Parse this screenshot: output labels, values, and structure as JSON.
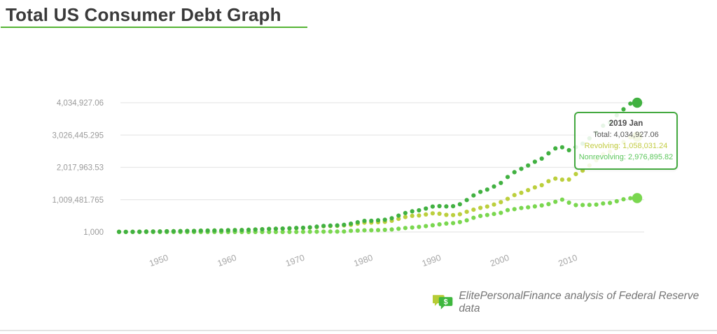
{
  "header": {
    "title": "Total US Consumer Debt Graph"
  },
  "colors": {
    "title_text": "#3a3a3a",
    "title_underline": "#55b435",
    "total_series": "#41b141",
    "nonrevolving_series": "#bccf3d",
    "revolving_series": "#7ad74f",
    "tooltip_border": "#44a940",
    "gridline": "#e7e7e7",
    "axis_label": "#a6a6a6"
  },
  "tooltip": {
    "title": "2019 Jan",
    "total_line": "Total: 4,034,927.06",
    "revolving_line": "Revolving: 1,058,031.24",
    "nonrevolving_line": "Nonrevolving: 2,976,895.82"
  },
  "footer": {
    "icon": "dollar-chat-bubbles-icon",
    "attribution": "ElitePersonalFinance analysis of Federal Reserve data"
  },
  "chart_data": {
    "type": "scatter",
    "title": "Total US Consumer Debt Graph",
    "xlabel": "",
    "ylabel": "",
    "grid": true,
    "legend_position": "none",
    "ylim": [
      1000,
      4034927.06
    ],
    "y_ticks": [
      {
        "label": "4,034,927.06",
        "value": 4034927.06
      },
      {
        "label": "3,026,445.295",
        "value": 3026445.295
      },
      {
        "label": "2,017,963.53",
        "value": 2017963.53
      },
      {
        "label": "1,009,481.765",
        "value": 1009481.765
      },
      {
        "label": "1,000",
        "value": 1000
      }
    ],
    "x_ticks": [
      1950,
      1960,
      1970,
      1980,
      1990,
      2000,
      2010
    ],
    "x": [
      1943,
      1944,
      1945,
      1946,
      1947,
      1948,
      1949,
      1950,
      1951,
      1952,
      1953,
      1954,
      1955,
      1956,
      1957,
      1958,
      1959,
      1960,
      1961,
      1962,
      1963,
      1964,
      1965,
      1966,
      1967,
      1968,
      1969,
      1970,
      1971,
      1972,
      1973,
      1974,
      1975,
      1976,
      1977,
      1978,
      1979,
      1980,
      1981,
      1982,
      1983,
      1984,
      1985,
      1986,
      1987,
      1988,
      1989,
      1990,
      1991,
      1992,
      1993,
      1994,
      1995,
      1996,
      1997,
      1998,
      1999,
      2000,
      2001,
      2002,
      2003,
      2004,
      2005,
      2006,
      2007,
      2008,
      2009,
      2010,
      2011,
      2012,
      2013,
      2014,
      2015,
      2016,
      2017,
      2018,
      2019
    ],
    "series": [
      {
        "name": "Nonrevolving",
        "color": "#bccf3d",
        "final_label": "2,976,895.82",
        "values": [
          6500,
          6300,
          7150,
          9780,
          13100,
          15740,
          18820,
          22930,
          24520,
          29270,
          33420,
          34620,
          41620,
          44920,
          47420,
          48020,
          55420,
          59920,
          62120,
          68120,
          76520,
          85720,
          95820,
          101720,
          106720,
          115300,
          123600,
          126580,
          138680,
          156790,
          178750,
          185940,
          190460,
          209170,
          223160,
          259430,
          293910,
          294470,
          305720,
          317150,
          351340,
          410950,
          467620,
          505030,
          515340,
          547340,
          583380,
          569590,
          534260,
          527670,
          555740,
          631730,
          697560,
          754020,
          793720,
          858500,
          932910,
          1034680,
          1152650,
          1223340,
          1307060,
          1392650,
          1461280,
          1586470,
          1667560,
          1633460,
          1638240,
          1808530,
          1914670,
          2077410,
          2241440,
          2427550,
          2509800,
          2684490,
          2807250,
          2954170,
          2976895.82
        ]
      },
      {
        "name": "Revolving",
        "color": "#7ad74f",
        "final_label": "1,058,031.24",
        "values": [
          1000,
          1000,
          1000,
          1000,
          1000,
          1000,
          1000,
          1000,
          1000,
          1000,
          1000,
          1000,
          1000,
          1000,
          1000,
          1000,
          1000,
          1000,
          1000,
          1000,
          1000,
          1000,
          1000,
          1000,
          1000,
          2100,
          3600,
          4970,
          8250,
          9400,
          11340,
          13240,
          14500,
          16550,
          37400,
          45690,
          53600,
          54970,
          60930,
          66350,
          79030,
          100390,
          124470,
          141070,
          160850,
          184590,
          211230,
          238640,
          263770,
          278450,
          309910,
          365570,
          443180,
          499420,
          531040,
          562490,
          598200,
          682640,
          714390,
          748750,
          770530,
          799560,
          829650,
          870200,
          941890,
          1010330,
          916780,
          839530,
          842450,
          846150,
          856430,
          889890,
          907880,
          960480,
          1021620,
          1053300,
          1058031.24
        ]
      },
      {
        "name": "Total",
        "color": "#41b141",
        "final_label": "4,034,927.06",
        "values": [
          6580,
          6380,
          7230,
          9860,
          13180,
          15820,
          18900,
          23010,
          24600,
          29350,
          33500,
          34700,
          41700,
          45000,
          47500,
          48100,
          55500,
          60000,
          62200,
          68200,
          76600,
          85800,
          95900,
          101800,
          106800,
          117400,
          127200,
          131550,
          146930,
          166190,
          190090,
          199180,
          204960,
          225720,
          260560,
          305120,
          347510,
          349440,
          366650,
          383500,
          430370,
          511340,
          592090,
          646100,
          676190,
          731930,
          794610,
          808230,
          798030,
          806120,
          865650,
          997300,
          1140740,
          1253440,
          1324760,
          1420990,
          1531110,
          1717320,
          1867040,
          1972090,
          2077590,
          2192210,
          2290930,
          2456670,
          2609450,
          2643790,
          2555020,
          2648060,
          2757120,
          2923560,
          3097870,
          3317440,
          3417680,
          3644970,
          3828870,
          4007470,
          4034927.06
        ]
      }
    ]
  }
}
